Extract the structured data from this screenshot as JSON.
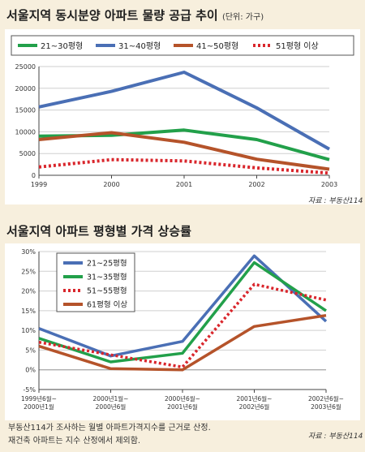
{
  "chart_data": [
    {
      "type": "line",
      "title": "서울지역 동시분양 아파트 물량 공급 추이",
      "unit_label": "(단위: 가구)",
      "source": "자료 : 부동산114",
      "categories": [
        "1999",
        "2000",
        "2001",
        "2002",
        "2003"
      ],
      "ylim": [
        0,
        25000
      ],
      "yticks": [
        "0",
        "5000",
        "10000",
        "15000",
        "20000",
        "25000"
      ],
      "legend_position": "top",
      "series": [
        {
          "name": "21~30평형",
          "color": "#22a04a",
          "dash": "solid",
          "values": [
            9000,
            9200,
            10400,
            8200,
            3600
          ]
        },
        {
          "name": "31~40평형",
          "color": "#4a6fb5",
          "dash": "solid",
          "values": [
            15700,
            19300,
            23700,
            15500,
            6000
          ]
        },
        {
          "name": "41~50평형",
          "color": "#b5532a",
          "dash": "solid",
          "values": [
            8200,
            9800,
            7600,
            3700,
            1400
          ]
        },
        {
          "name": "51평형 이상",
          "color": "#d9262c",
          "dash": "dotted",
          "values": [
            1900,
            3600,
            3300,
            1700,
            500
          ]
        }
      ]
    },
    {
      "type": "line",
      "title": "서울지역 아파트 평형별 가격 상승률",
      "source": "자료 : 부동산114",
      "categories": [
        [
          "1999년6월~",
          "2000년1월"
        ],
        [
          "2000년1월~",
          "2000년6월"
        ],
        [
          "2000년6월~",
          "2001년6월"
        ],
        [
          "2001년6월~",
          "2002년6월"
        ],
        [
          "2002년6월~",
          "2003년6월"
        ]
      ],
      "ylim": [
        -5,
        30
      ],
      "yticks": [
        "-5%",
        "0%",
        "5%",
        "10%",
        "15%",
        "20%",
        "25%",
        "30%"
      ],
      "legend_position": "top-left",
      "series": [
        {
          "name": "21~25평형",
          "color": "#4a6fb5",
          "dash": "solid",
          "values": [
            10.5,
            3.5,
            7.2,
            28.9,
            12.3
          ]
        },
        {
          "name": "31~35평형",
          "color": "#22a04a",
          "dash": "solid",
          "values": [
            8.0,
            2.0,
            4.2,
            27.2,
            15.0
          ]
        },
        {
          "name": "51~55평형",
          "color": "#d9262c",
          "dash": "dotted",
          "values": [
            7.0,
            3.8,
            0.7,
            21.7,
            17.7
          ]
        },
        {
          "name": "61평형 이상",
          "color": "#b5532a",
          "dash": "solid",
          "values": [
            6.0,
            0.3,
            0.0,
            11.0,
            13.8
          ]
        }
      ]
    }
  ],
  "footnote": [
    "부동산114가 조사하는 월별 아파트가격지수를 근거로 산정.",
    "재건축 아파트는 지수 산정에서 제외함."
  ]
}
